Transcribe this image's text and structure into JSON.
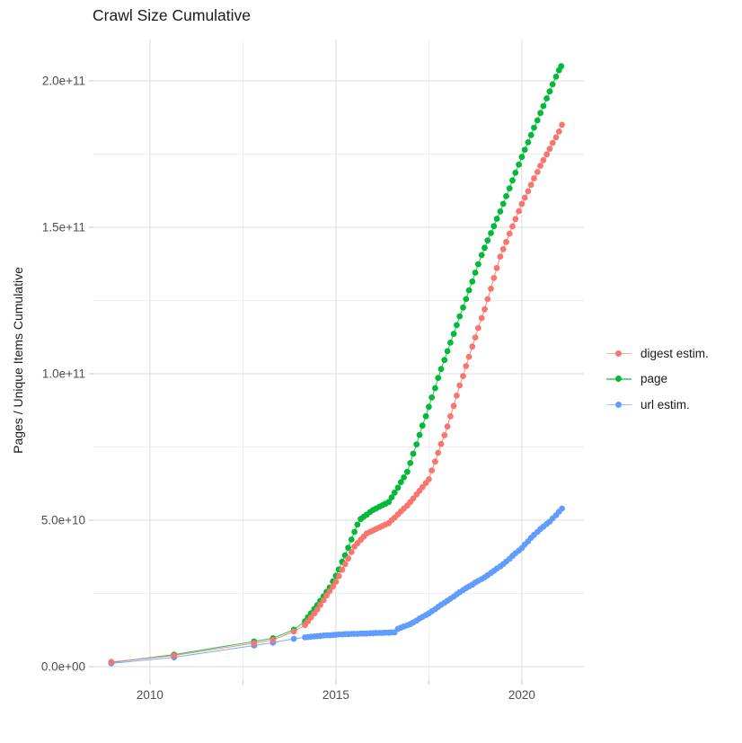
{
  "title": "Crawl Size Cumulative",
  "chart_data": {
    "type": "scatter",
    "title": "Crawl Size Cumulative",
    "xlabel": "",
    "ylabel": "Pages / Unique Items Cumulative",
    "grid": true,
    "x_axis": {
      "domain": [
        2008.48,
        2021.67
      ],
      "major_ticks": [
        2010,
        2015,
        2020
      ],
      "minor_ticks": [
        2012.5,
        2017.5
      ],
      "tick_labels": [
        "2010",
        "2015",
        "2020"
      ]
    },
    "y_axis": {
      "unit_note": "values stored in billions (1e9 items)",
      "domain_e9": [
        -4.6,
        214.1
      ],
      "major_ticks_e9": [
        0,
        50,
        100,
        150,
        200
      ],
      "minor_ticks_e9": [
        25,
        75,
        125,
        175
      ],
      "tick_labels": [
        "0.0e+00",
        "5.0e+10",
        "1.0e+11",
        "1.5e+11",
        "2.0e+11"
      ]
    },
    "legend": {
      "position": "right",
      "entries": [
        "digest estim.",
        "page",
        "url estim."
      ]
    },
    "series": [
      {
        "id": "page",
        "name": "page",
        "color": "#00BA38",
        "points_year_value_e9": [
          [
            2008.96,
            1.4
          ],
          [
            2010.65,
            4.1
          ],
          [
            2012.8,
            8.6
          ],
          [
            2013.31,
            9.7
          ],
          [
            2013.87,
            12.6
          ],
          [
            2014.17,
            15.5
          ],
          [
            2014.25,
            16.9
          ],
          [
            2014.33,
            18.2
          ],
          [
            2014.42,
            19.7
          ],
          [
            2014.5,
            21.0
          ],
          [
            2014.58,
            22.5
          ],
          [
            2014.67,
            24.0
          ],
          [
            2014.75,
            25.5
          ],
          [
            2014.83,
            27.0
          ],
          [
            2014.92,
            29.1
          ],
          [
            2015.0,
            31.0
          ],
          [
            2015.08,
            33.2
          ],
          [
            2015.17,
            35.8
          ],
          [
            2015.25,
            38.0
          ],
          [
            2015.33,
            40.6
          ],
          [
            2015.42,
            43.4
          ],
          [
            2015.5,
            46.0
          ],
          [
            2015.58,
            48.5
          ],
          [
            2015.67,
            50.4
          ],
          [
            2015.75,
            51.2
          ],
          [
            2015.83,
            51.9
          ],
          [
            2015.92,
            52.8
          ],
          [
            2016.0,
            53.5
          ],
          [
            2016.08,
            54.0
          ],
          [
            2016.17,
            54.6
          ],
          [
            2016.25,
            55.1
          ],
          [
            2016.33,
            55.6
          ],
          [
            2016.42,
            56.2
          ],
          [
            2016.5,
            57.8
          ],
          [
            2016.58,
            59.4
          ],
          [
            2016.67,
            61.1
          ],
          [
            2016.75,
            63.0
          ],
          [
            2016.83,
            64.6
          ],
          [
            2016.92,
            66.5
          ],
          [
            2017.0,
            69.5
          ],
          [
            2017.08,
            72.7
          ],
          [
            2017.17,
            75.9
          ],
          [
            2017.25,
            79.1
          ],
          [
            2017.33,
            82.3
          ],
          [
            2017.42,
            85.5
          ],
          [
            2017.5,
            88.7
          ],
          [
            2017.58,
            91.9
          ],
          [
            2017.67,
            95.1
          ],
          [
            2017.75,
            98.6
          ],
          [
            2017.83,
            101.6
          ],
          [
            2017.92,
            104.7
          ],
          [
            2018.0,
            107.7
          ],
          [
            2018.08,
            110.6
          ],
          [
            2018.17,
            113.6
          ],
          [
            2018.25,
            116.6
          ],
          [
            2018.33,
            119.6
          ],
          [
            2018.42,
            122.6
          ],
          [
            2018.5,
            125.5
          ],
          [
            2018.58,
            128.5
          ],
          [
            2018.67,
            131.5
          ],
          [
            2018.75,
            134.5
          ],
          [
            2018.83,
            137.4
          ],
          [
            2018.92,
            140.5
          ],
          [
            2019.0,
            143.0
          ],
          [
            2019.08,
            145.5
          ],
          [
            2019.17,
            148.0
          ],
          [
            2019.25,
            150.4
          ],
          [
            2019.33,
            152.9
          ],
          [
            2019.42,
            155.4
          ],
          [
            2019.5,
            158.0
          ],
          [
            2019.58,
            160.6
          ],
          [
            2019.67,
            163.3
          ],
          [
            2019.75,
            166.0
          ],
          [
            2019.83,
            168.6
          ],
          [
            2019.92,
            171.4
          ],
          [
            2020.0,
            174.0
          ],
          [
            2020.08,
            176.5
          ],
          [
            2020.17,
            179.0
          ],
          [
            2020.25,
            181.5
          ],
          [
            2020.33,
            184.0
          ],
          [
            2020.42,
            186.5
          ],
          [
            2020.5,
            189.0
          ],
          [
            2020.58,
            191.4
          ],
          [
            2020.67,
            194.0
          ],
          [
            2020.75,
            196.4
          ],
          [
            2020.83,
            198.8
          ],
          [
            2020.92,
            201.4
          ],
          [
            2021.0,
            203.6
          ],
          [
            2021.06,
            205.0
          ]
        ]
      },
      {
        "id": "url",
        "name": "url estim.",
        "color": "#619CFF",
        "points_year_value_e9": [
          [
            2008.96,
            1.1
          ],
          [
            2010.65,
            3.2
          ],
          [
            2012.8,
            7.2
          ],
          [
            2013.31,
            8.2
          ],
          [
            2013.87,
            9.5
          ],
          [
            2014.17,
            10.0
          ],
          [
            2014.25,
            10.1
          ],
          [
            2014.33,
            10.2
          ],
          [
            2014.42,
            10.3
          ],
          [
            2014.5,
            10.4
          ],
          [
            2014.58,
            10.5
          ],
          [
            2014.67,
            10.6
          ],
          [
            2014.75,
            10.7
          ],
          [
            2014.83,
            10.7
          ],
          [
            2014.92,
            10.8
          ],
          [
            2015.0,
            10.9
          ],
          [
            2015.08,
            11.0
          ],
          [
            2015.17,
            11.0
          ],
          [
            2015.25,
            11.1
          ],
          [
            2015.33,
            11.1
          ],
          [
            2015.42,
            11.2
          ],
          [
            2015.5,
            11.2
          ],
          [
            2015.58,
            11.2
          ],
          [
            2015.67,
            11.3
          ],
          [
            2015.75,
            11.3
          ],
          [
            2015.83,
            11.3
          ],
          [
            2015.92,
            11.4
          ],
          [
            2016.0,
            11.4
          ],
          [
            2016.08,
            11.5
          ],
          [
            2016.17,
            11.5
          ],
          [
            2016.25,
            11.5
          ],
          [
            2016.33,
            11.6
          ],
          [
            2016.42,
            11.6
          ],
          [
            2016.5,
            11.7
          ],
          [
            2016.58,
            11.7
          ],
          [
            2016.67,
            12.9
          ],
          [
            2016.75,
            13.3
          ],
          [
            2016.83,
            13.7
          ],
          [
            2016.92,
            14.1
          ],
          [
            2017.0,
            14.5
          ],
          [
            2017.08,
            15.1
          ],
          [
            2017.17,
            15.7
          ],
          [
            2017.25,
            16.4
          ],
          [
            2017.33,
            17.0
          ],
          [
            2017.42,
            17.6
          ],
          [
            2017.5,
            18.2
          ],
          [
            2017.58,
            18.9
          ],
          [
            2017.67,
            19.6
          ],
          [
            2017.75,
            20.4
          ],
          [
            2017.83,
            21.1
          ],
          [
            2017.92,
            21.8
          ],
          [
            2018.0,
            22.5
          ],
          [
            2018.08,
            23.2
          ],
          [
            2018.17,
            23.9
          ],
          [
            2018.25,
            24.7
          ],
          [
            2018.33,
            25.4
          ],
          [
            2018.42,
            26.1
          ],
          [
            2018.5,
            26.8
          ],
          [
            2018.58,
            27.4
          ],
          [
            2018.67,
            28.0
          ],
          [
            2018.75,
            28.7
          ],
          [
            2018.83,
            29.3
          ],
          [
            2018.92,
            29.9
          ],
          [
            2019.0,
            30.5
          ],
          [
            2019.08,
            31.2
          ],
          [
            2019.17,
            32.0
          ],
          [
            2019.25,
            32.7
          ],
          [
            2019.33,
            33.5
          ],
          [
            2019.42,
            34.2
          ],
          [
            2019.5,
            35.0
          ],
          [
            2019.58,
            35.9
          ],
          [
            2019.67,
            36.8
          ],
          [
            2019.75,
            37.8
          ],
          [
            2019.83,
            38.7
          ],
          [
            2019.92,
            39.6
          ],
          [
            2020.0,
            40.5
          ],
          [
            2020.08,
            41.7
          ],
          [
            2020.17,
            42.8
          ],
          [
            2020.25,
            44.0
          ],
          [
            2020.33,
            45.0
          ],
          [
            2020.42,
            46.0
          ],
          [
            2020.5,
            47.0
          ],
          [
            2020.58,
            47.8
          ],
          [
            2020.67,
            48.7
          ],
          [
            2020.75,
            49.5
          ],
          [
            2020.83,
            50.6
          ],
          [
            2020.92,
            51.7
          ],
          [
            2021.0,
            52.9
          ],
          [
            2021.08,
            54.0
          ]
        ]
      },
      {
        "id": "digest",
        "name": "digest estim.",
        "color": "#F8766D",
        "points_year_value_e9": [
          [
            2008.96,
            1.6
          ],
          [
            2010.65,
            3.8
          ],
          [
            2012.8,
            8.0
          ],
          [
            2013.31,
            9.1
          ],
          [
            2013.87,
            12.0
          ],
          [
            2014.17,
            14.2
          ],
          [
            2014.25,
            15.5
          ],
          [
            2014.33,
            16.8
          ],
          [
            2014.42,
            18.2
          ],
          [
            2014.5,
            19.5
          ],
          [
            2014.58,
            21.1
          ],
          [
            2014.67,
            22.7
          ],
          [
            2014.75,
            24.3
          ],
          [
            2014.83,
            25.8
          ],
          [
            2014.92,
            27.4
          ],
          [
            2015.0,
            29.0
          ],
          [
            2015.08,
            30.9
          ],
          [
            2015.17,
            33.1
          ],
          [
            2015.25,
            35.0
          ],
          [
            2015.33,
            36.9
          ],
          [
            2015.42,
            39.1
          ],
          [
            2015.5,
            41.0
          ],
          [
            2015.58,
            42.1
          ],
          [
            2015.67,
            43.3
          ],
          [
            2015.75,
            44.4
          ],
          [
            2015.83,
            45.5
          ],
          [
            2015.92,
            46.0
          ],
          [
            2016.0,
            46.5
          ],
          [
            2016.08,
            47.0
          ],
          [
            2016.17,
            47.5
          ],
          [
            2016.25,
            48.0
          ],
          [
            2016.33,
            48.5
          ],
          [
            2016.42,
            49.0
          ],
          [
            2016.5,
            50.0
          ],
          [
            2016.58,
            50.9
          ],
          [
            2016.67,
            52.0
          ],
          [
            2016.75,
            53.0
          ],
          [
            2016.83,
            54.0
          ],
          [
            2016.92,
            55.0
          ],
          [
            2017.0,
            56.2
          ],
          [
            2017.08,
            57.4
          ],
          [
            2017.17,
            58.8
          ],
          [
            2017.25,
            60.0
          ],
          [
            2017.33,
            61.3
          ],
          [
            2017.42,
            62.7
          ],
          [
            2017.5,
            64.0
          ],
          [
            2017.58,
            67.0
          ],
          [
            2017.67,
            70.0
          ],
          [
            2017.75,
            73.0
          ],
          [
            2017.83,
            76.0
          ],
          [
            2017.92,
            79.0
          ],
          [
            2018.0,
            82.0
          ],
          [
            2018.08,
            85.5
          ],
          [
            2018.17,
            89.0
          ],
          [
            2018.25,
            92.5
          ],
          [
            2018.33,
            96.0
          ],
          [
            2018.42,
            99.2
          ],
          [
            2018.5,
            102.6
          ],
          [
            2018.58,
            105.8
          ],
          [
            2018.67,
            109.3
          ],
          [
            2018.75,
            112.4
          ],
          [
            2018.83,
            115.6
          ],
          [
            2018.92,
            119.0
          ],
          [
            2019.0,
            122.0
          ],
          [
            2019.08,
            125.5
          ],
          [
            2019.17,
            129.0
          ],
          [
            2019.25,
            132.7
          ],
          [
            2019.33,
            136.1
          ],
          [
            2019.42,
            140.0
          ],
          [
            2019.5,
            142.5
          ],
          [
            2019.58,
            145.0
          ],
          [
            2019.67,
            147.8
          ],
          [
            2019.75,
            150.3
          ],
          [
            2019.83,
            152.8
          ],
          [
            2019.92,
            155.5
          ],
          [
            2020.0,
            158.0
          ],
          [
            2020.08,
            160.1
          ],
          [
            2020.17,
            162.3
          ],
          [
            2020.25,
            164.5
          ],
          [
            2020.33,
            166.7
          ],
          [
            2020.42,
            168.9
          ],
          [
            2020.5,
            171.0
          ],
          [
            2020.58,
            172.9
          ],
          [
            2020.67,
            174.9
          ],
          [
            2020.75,
            176.8
          ],
          [
            2020.83,
            178.8
          ],
          [
            2020.92,
            180.7
          ],
          [
            2021.0,
            182.7
          ],
          [
            2021.08,
            185.0
          ]
        ]
      }
    ],
    "style": {
      "grid_major_color": "#e2e2e2",
      "grid_minor_color": "#efefef",
      "tick_mark_color": "#cfcfcf",
      "tick_text_color": "#4d4d4d",
      "point_radius": 3.4
    }
  }
}
